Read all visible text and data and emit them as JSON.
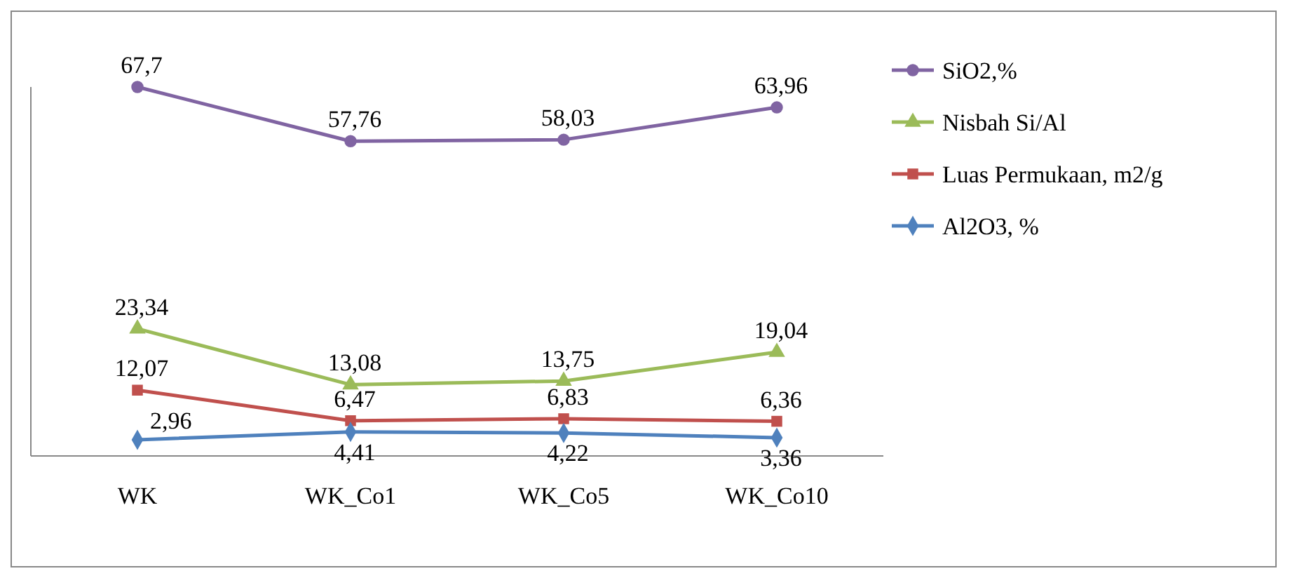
{
  "chart_data": {
    "type": "line",
    "categories": [
      "WK",
      "WK_Co1",
      "WK_Co5",
      "WK_Co10"
    ],
    "series": [
      {
        "name": "SiO2,%",
        "color": "#8064a2",
        "marker": "circle",
        "values": [
          67.7,
          57.76,
          58.03,
          63.96
        ],
        "value_labels": [
          "67,7",
          "57,76",
          "58,03",
          "63,96"
        ]
      },
      {
        "name": "Nisbah Si/Al",
        "color": "#9bbb59",
        "marker": "triangle",
        "values": [
          23.34,
          13.08,
          13.75,
          19.04
        ],
        "value_labels": [
          "23,34",
          "13,08",
          "13,75",
          "19,04"
        ]
      },
      {
        "name": "Luas Permukaan, m2/g",
        "color": "#c0504d",
        "marker": "square",
        "values": [
          12.07,
          6.47,
          6.83,
          6.36
        ],
        "value_labels": [
          "12,07",
          "6,47",
          "6,83",
          "6,36"
        ]
      },
      {
        "name": "Al2O3, %",
        "color": "#4f81bd",
        "marker": "diamond",
        "values": [
          2.96,
          4.41,
          4.22,
          3.36
        ],
        "value_labels": [
          "2,96",
          "4,41",
          "4,22",
          "3,36"
        ]
      }
    ],
    "tick_labels": "x",
    "legend": "right"
  }
}
